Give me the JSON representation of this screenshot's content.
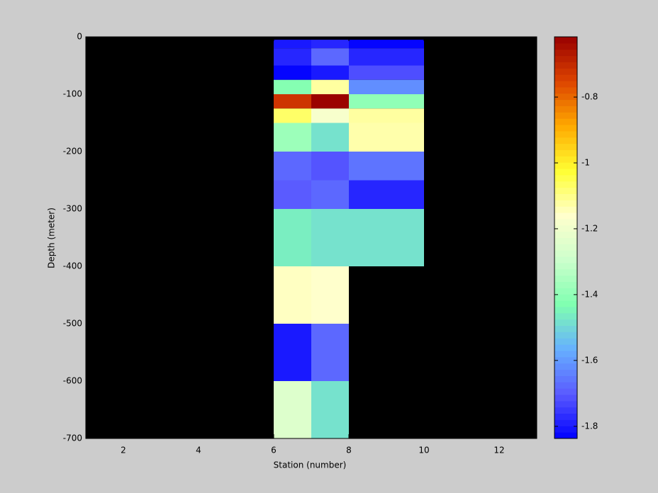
{
  "chart_data": {
    "type": "heatmap",
    "xlabel": "Station (number)",
    "ylabel": "Depth (meter)",
    "x_bins": [
      6,
      7,
      8,
      10
    ],
    "y_bins": [
      -5,
      -20,
      -50,
      -75,
      -100,
      -125,
      -150,
      -200,
      -250,
      -300,
      -400,
      -500,
      -600,
      -700
    ],
    "values": [
      [
        -1.8,
        -1.78,
        -1.83
      ],
      [
        -1.78,
        -1.68,
        -1.78
      ],
      [
        -1.83,
        -1.8,
        -1.72
      ],
      [
        -1.42,
        -1.12,
        -1.62
      ],
      [
        -0.72,
        -0.62,
        -1.4
      ],
      [
        -1.07,
        -1.18,
        -1.12
      ],
      [
        -1.38,
        -1.48,
        -1.13
      ],
      [
        -1.68,
        -1.71,
        -1.66
      ],
      [
        -1.7,
        -1.68,
        -1.78
      ],
      [
        -1.46,
        -1.48,
        -1.48
      ],
      [
        -1.15,
        -1.16,
        null
      ],
      [
        -1.8,
        -1.68,
        null
      ],
      [
        -1.25,
        -1.48,
        null
      ]
    ],
    "xlim": [
      1,
      13
    ],
    "xticks": [
      2,
      4,
      6,
      8,
      10,
      12
    ],
    "ylim": [
      -700,
      0
    ],
    "yticks": [
      -700,
      -600,
      -500,
      -400,
      -300,
      -200,
      -100,
      0
    ],
    "clim": [
      -1.837,
      -0.617
    ],
    "cticks": [
      -1.8,
      -1.6,
      -1.4,
      -1.2,
      -1,
      -0.8
    ],
    "background": "#000000",
    "colormap": [
      "#0000ff",
      "#5a5aff",
      "#66b0ff",
      "#7fffb0",
      "#ccffcc",
      "#ffffcc",
      "#ffff33",
      "#ffaa00",
      "#dd4400",
      "#990000"
    ]
  }
}
